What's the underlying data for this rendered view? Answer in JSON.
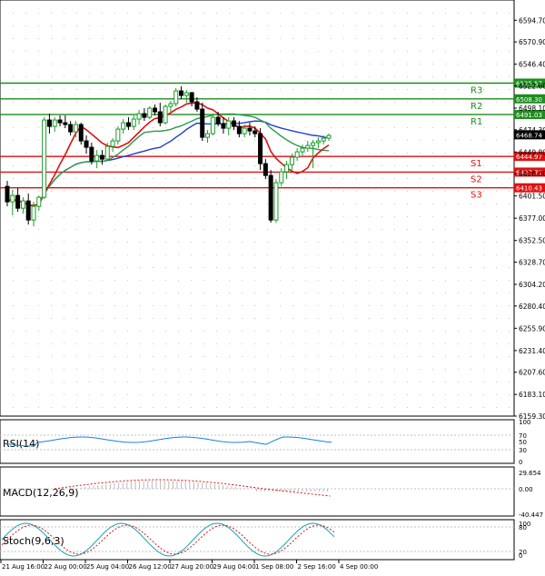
{
  "chart_data": {
    "type": "candlestick",
    "price_axis": {
      "ticks": [
        "6594.70",
        "6570.90",
        "6546.40",
        "6522.60",
        "6498.10",
        "6474.30",
        "6449.80",
        "6426.00",
        "6401.50",
        "6377.00",
        "6352.50",
        "6328.70",
        "6304.20",
        "6280.40",
        "6255.90",
        "6231.40",
        "6207.60",
        "6183.10",
        "6159.30"
      ],
      "range": [
        6159.3,
        6617.0
      ]
    },
    "time_axis": {
      "labels": [
        "21 Aug 16:00",
        "22 Aug 00:00",
        "25 Aug 04:00",
        "26 Aug 12:00",
        "27 Aug 20:00",
        "29 Aug 04:00",
        "1 Sep 08:00",
        "2 Sep 16:00",
        "4 Sep 00:00"
      ]
    },
    "levels": [
      {
        "name": "R3",
        "value": 6525.57,
        "label": "6525.57",
        "color": "#1e8c1e"
      },
      {
        "name": "R2",
        "value": 6508.3,
        "label": "6508.30",
        "color": "#1e8c1e"
      },
      {
        "name": "R1",
        "value": 6491.03,
        "label": "6491.03",
        "color": "#1e8c1e"
      },
      {
        "name": "S1",
        "value": 6444.97,
        "label": "6444.97",
        "color": "#e01010"
      },
      {
        "name": "S2",
        "value": 6427.7,
        "label": "6427.70",
        "color": "#e01010"
      },
      {
        "name": "S3",
        "value": 6410.43,
        "label": "6410.43",
        "color": "#e01010"
      }
    ],
    "last_price": {
      "value": 6468.74,
      "label": "6468.74"
    },
    "candles": [
      [
        6412,
        6418,
        6390,
        6395
      ],
      [
        6395,
        6408,
        6380,
        6402
      ],
      [
        6402,
        6410,
        6384,
        6388
      ],
      [
        6388,
        6400,
        6382,
        6396
      ],
      [
        6396,
        6404,
        6370,
        6375
      ],
      [
        6375,
        6395,
        6368,
        6390
      ],
      [
        6390,
        6402,
        6385,
        6400
      ],
      [
        6400,
        6488,
        6398,
        6485
      ],
      [
        6485,
        6492,
        6470,
        6478
      ],
      [
        6478,
        6488,
        6472,
        6485
      ],
      [
        6485,
        6490,
        6478,
        6482
      ],
      [
        6482,
        6490,
        6476,
        6480
      ],
      [
        6480,
        6484,
        6468,
        6472
      ],
      [
        6472,
        6484,
        6466,
        6480
      ],
      [
        6480,
        6482,
        6458,
        6462
      ],
      [
        6462,
        6468,
        6448,
        6455
      ],
      [
        6455,
        6460,
        6436,
        6440
      ],
      [
        6440,
        6452,
        6432,
        6446
      ],
      [
        6446,
        6452,
        6436,
        6442
      ],
      [
        6442,
        6460,
        6440,
        6456
      ],
      [
        6456,
        6465,
        6450,
        6462
      ],
      [
        6462,
        6478,
        6458,
        6475
      ],
      [
        6475,
        6486,
        6470,
        6482
      ],
      [
        6482,
        6488,
        6474,
        6478
      ],
      [
        6478,
        6490,
        6474,
        6486
      ],
      [
        6486,
        6496,
        6480,
        6492
      ],
      [
        6492,
        6498,
        6484,
        6488
      ],
      [
        6488,
        6500,
        6486,
        6498
      ],
      [
        6498,
        6502,
        6490,
        6494
      ],
      [
        6494,
        6504,
        6478,
        6482
      ],
      [
        6482,
        6502,
        6480,
        6500
      ],
      [
        6500,
        6506,
        6494,
        6503
      ],
      [
        6503,
        6520,
        6500,
        6517
      ],
      [
        6517,
        6522,
        6508,
        6512
      ],
      [
        6512,
        6518,
        6504,
        6515
      ],
      [
        6515,
        6516,
        6500,
        6505
      ],
      [
        6505,
        6510,
        6494,
        6497
      ],
      [
        6497,
        6504,
        6462,
        6466
      ],
      [
        6466,
        6474,
        6460,
        6470
      ],
      [
        6470,
        6492,
        6468,
        6488
      ],
      [
        6488,
        6494,
        6478,
        6481
      ],
      [
        6481,
        6488,
        6470,
        6476
      ],
      [
        6476,
        6488,
        6468,
        6484
      ],
      [
        6484,
        6488,
        6474,
        6478
      ],
      [
        6478,
        6484,
        6466,
        6470
      ],
      [
        6470,
        6480,
        6466,
        6476
      ],
      [
        6476,
        6482,
        6468,
        6473
      ],
      [
        6473,
        6478,
        6466,
        6470
      ],
      [
        6470,
        6476,
        6430,
        6437
      ],
      [
        6437,
        6442,
        6420,
        6424
      ],
      [
        6424,
        6430,
        6372,
        6375
      ],
      [
        6375,
        6420,
        6372,
        6416
      ],
      [
        6416,
        6432,
        6412,
        6428
      ],
      [
        6428,
        6440,
        6420,
        6436
      ],
      [
        6436,
        6448,
        6430,
        6444
      ],
      [
        6444,
        6454,
        6440,
        6450
      ],
      [
        6450,
        6458,
        6446,
        6454
      ],
      [
        6454,
        6462,
        6450,
        6457
      ],
      [
        6457,
        6463,
        6432,
        6460
      ],
      [
        6460,
        6466,
        6454,
        6462
      ],
      [
        6462,
        6468,
        6458,
        6465
      ],
      [
        6465,
        6470,
        6462,
        6468
      ]
    ],
    "indicators": {
      "rsi": {
        "label": "RSI(14)",
        "scale": [
          "100",
          "70",
          "50",
          "30",
          "0"
        ]
      },
      "macd": {
        "label": "MACD(12,26,9)",
        "scale": [
          "29.654",
          "0.00",
          "-40.447"
        ]
      },
      "stoch": {
        "label": "Stoch(9,6,3)",
        "scale": [
          "100",
          "80",
          "20",
          "0"
        ]
      }
    }
  }
}
